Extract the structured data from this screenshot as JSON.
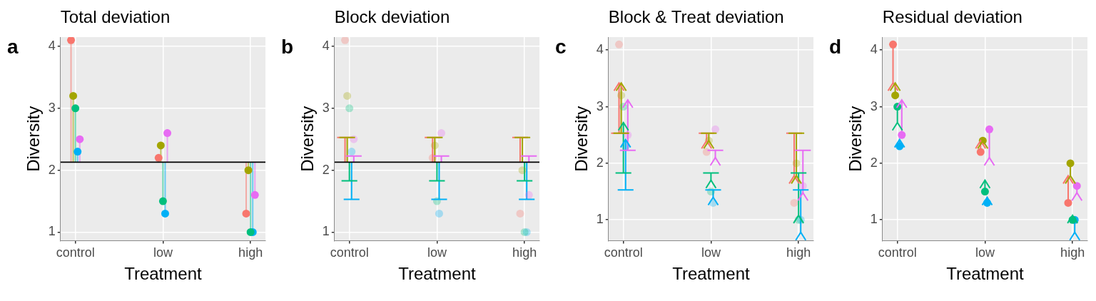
{
  "chart_data": [
    {
      "type": "scatter",
      "panel_label": "a",
      "title": "Total deviation",
      "x_label": "Treatment",
      "y_label": "Diversity",
      "categories": [
        "control",
        "low",
        "high"
      ],
      "ylim": [
        0.86,
        4.15
      ],
      "yticks": [
        1,
        2,
        3,
        4
      ],
      "grid": true,
      "grand_mean": 2.13,
      "series": [
        {
          "color": "#F8766D",
          "values": [
            4.1,
            2.2,
            1.3
          ]
        },
        {
          "color": "#A3A500",
          "values": [
            3.2,
            2.4,
            2.0
          ]
        },
        {
          "color": "#00BF7D",
          "values": [
            3.0,
            1.5,
            1.0
          ]
        },
        {
          "color": "#00B0F6",
          "values": [
            2.3,
            1.3,
            1.0
          ]
        },
        {
          "color": "#E76BF3",
          "values": [
            2.5,
            2.6,
            1.6
          ]
        }
      ]
    },
    {
      "type": "scatter",
      "panel_label": "b",
      "title": "Block deviation",
      "x_label": "Treatment",
      "y_label": "Diversity",
      "categories": [
        "control",
        "low",
        "high"
      ],
      "ylim": [
        0.86,
        4.15
      ],
      "yticks": [
        1,
        2,
        3,
        4
      ],
      "grid": true,
      "grand_mean": 2.13,
      "series": [
        {
          "color": "#F8766D",
          "values": [
            4.1,
            2.2,
            1.3
          ],
          "block_mean": 2.53
        },
        {
          "color": "#A3A500",
          "values": [
            3.2,
            2.4,
            2.0
          ],
          "block_mean": 2.53
        },
        {
          "color": "#00BF7D",
          "values": [
            3.0,
            1.5,
            1.0
          ],
          "block_mean": 1.83
        },
        {
          "color": "#00B0F6",
          "values": [
            2.3,
            1.3,
            1.0
          ],
          "block_mean": 1.53
        },
        {
          "color": "#E76BF3",
          "values": [
            2.5,
            2.6,
            1.6
          ],
          "block_mean": 2.23
        }
      ]
    },
    {
      "type": "scatter",
      "panel_label": "c",
      "title": "Block & Treat deviation",
      "x_label": "Treatment",
      "y_label": "Diversity",
      "categories": [
        "control",
        "low",
        "high"
      ],
      "ylim": [
        0.63,
        4.23
      ],
      "yticks": [
        1,
        2,
        3,
        4
      ],
      "grid": true,
      "series": [
        {
          "color": "#F8766D",
          "values": [
            4.1,
            2.2,
            1.3
          ],
          "block_mean": 2.53,
          "fitted": [
            3.42,
            2.4,
            1.78
          ]
        },
        {
          "color": "#A3A500",
          "values": [
            3.2,
            2.4,
            2.0
          ],
          "block_mean": 2.53,
          "fitted": [
            3.42,
            2.4,
            1.78
          ]
        },
        {
          "color": "#00BF7D",
          "values": [
            3.0,
            1.5,
            1.0
          ],
          "block_mean": 1.83,
          "fitted": [
            2.72,
            1.7,
            1.08
          ]
        },
        {
          "color": "#00B0F6",
          "values": [
            2.3,
            1.3,
            1.0
          ],
          "block_mean": 1.53,
          "fitted": [
            2.42,
            1.4,
            0.78
          ]
        },
        {
          "color": "#E76BF3",
          "values": [
            2.5,
            2.6,
            1.6
          ],
          "block_mean": 2.23,
          "fitted": [
            3.12,
            2.1,
            1.48
          ]
        }
      ]
    },
    {
      "type": "scatter",
      "panel_label": "d",
      "title": "Residual deviation",
      "x_label": "Treatment",
      "y_label": "Diversity",
      "categories": [
        "control",
        "low",
        "high"
      ],
      "ylim": [
        0.63,
        4.23
      ],
      "yticks": [
        1,
        2,
        3,
        4
      ],
      "grid": true,
      "series": [
        {
          "color": "#F8766D",
          "values": [
            4.1,
            2.2,
            1.3
          ],
          "fitted": [
            3.42,
            2.4,
            1.78
          ]
        },
        {
          "color": "#A3A500",
          "values": [
            3.2,
            2.4,
            2.0
          ],
          "fitted": [
            3.42,
            2.4,
            1.78
          ]
        },
        {
          "color": "#00BF7D",
          "values": [
            3.0,
            1.5,
            1.0
          ],
          "fitted": [
            2.72,
            1.7,
            1.08
          ]
        },
        {
          "color": "#00B0F6",
          "values": [
            2.3,
            1.3,
            1.0
          ],
          "fitted": [
            2.42,
            1.4,
            0.78
          ]
        },
        {
          "color": "#E76BF3",
          "values": [
            2.5,
            2.6,
            1.6
          ],
          "fitted": [
            3.12,
            2.1,
            1.48
          ]
        }
      ]
    }
  ]
}
